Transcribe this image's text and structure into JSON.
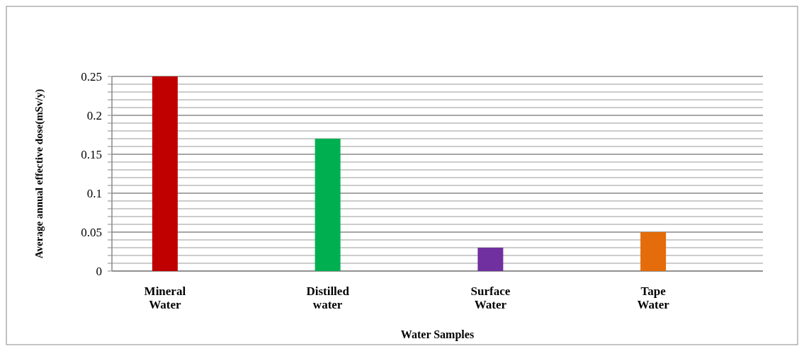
{
  "chart_data": {
    "type": "bar",
    "xlabel": "Water Samples",
    "ylabel": "Average annual effective dose(mSv/y)",
    "categories": [
      "Mineral Water",
      "Distilled water",
      "Surface Water",
      "Tape Water"
    ],
    "values": [
      0.25,
      0.17,
      0.03,
      0.05
    ],
    "colors": [
      "#c00000",
      "#00b050",
      "#7030a0",
      "#e46c0a"
    ],
    "ylim": [
      0,
      0.25
    ],
    "yticks": [
      0,
      {
        "value": 0.01,
        "label": null
      },
      {
        "value": 0.02,
        "label": null
      },
      {
        "value": 0.03,
        "label": null
      },
      {
        "value": 0.04,
        "label": null
      },
      0.05,
      {
        "value": 0.06,
        "label": null
      },
      {
        "value": 0.07,
        "label": null
      },
      {
        "value": 0.08,
        "label": null
      },
      {
        "value": 0.09,
        "label": null
      },
      0.1,
      {
        "value": 0.11,
        "label": null
      },
      {
        "value": 0.12,
        "label": null
      },
      {
        "value": 0.13,
        "label": null
      },
      {
        "value": 0.14,
        "label": null
      },
      0.15,
      {
        "value": 0.16,
        "label": null
      },
      {
        "value": 0.17,
        "label": null
      },
      {
        "value": 0.18,
        "label": null
      },
      {
        "value": 0.19,
        "label": null
      },
      0.2,
      {
        "value": 0.21,
        "label": null
      },
      {
        "value": 0.22,
        "label": null
      },
      {
        "value": 0.23,
        "label": null
      },
      {
        "value": 0.24,
        "label": null
      },
      0.25
    ],
    "grid": true
  }
}
